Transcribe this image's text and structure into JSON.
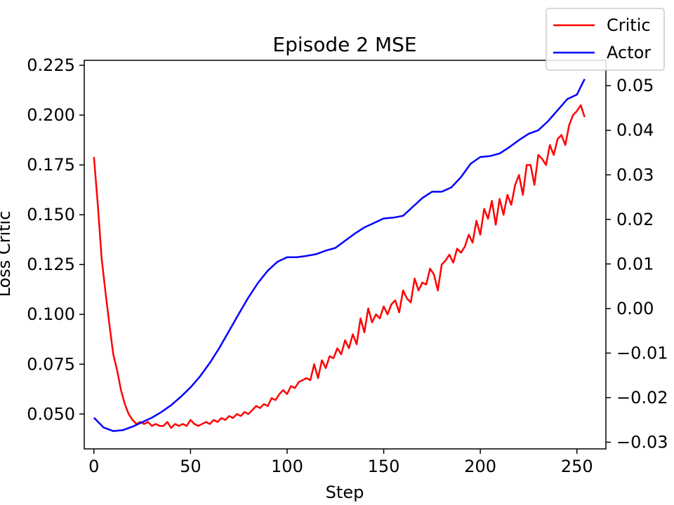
{
  "chart_data": {
    "type": "line",
    "title": "Episode 2 MSE",
    "xlabel": "Step",
    "ylabel_left": "Loss Critic",
    "ylabel_right": "",
    "xlim": [
      -5,
      265
    ],
    "ylim_left": [
      0.0325,
      0.2275
    ],
    "ylim_right": [
      -0.0315,
      0.0557
    ],
    "x_ticks": [
      0,
      50,
      100,
      150,
      200,
      250
    ],
    "y_left_ticks": [
      "0.050",
      "0.075",
      "0.100",
      "0.125",
      "0.150",
      "0.175",
      "0.200",
      "0.225"
    ],
    "y_right_ticks": [
      "0.05",
      "0.04",
      "0.03",
      "0.02",
      "0.01",
      "0.00",
      "−0.01",
      "−0.02",
      "−0.03"
    ],
    "legend": {
      "position": "top-right",
      "entries": [
        "Critic",
        "Actor"
      ]
    },
    "grid": false,
    "colors": {
      "critic": "#ff0000",
      "actor": "#0000ff"
    },
    "series": [
      {
        "name": "Critic",
        "axis": "left",
        "color": "#ff0000",
        "x": [
          0,
          2,
          4,
          6,
          8,
          10,
          12,
          14,
          16,
          18,
          20,
          22,
          24,
          26,
          28,
          30,
          32,
          34,
          36,
          38,
          40,
          42,
          44,
          46,
          48,
          50,
          52,
          54,
          56,
          58,
          60,
          62,
          64,
          66,
          68,
          70,
          72,
          74,
          76,
          78,
          80,
          82,
          84,
          86,
          88,
          90,
          92,
          94,
          96,
          98,
          100,
          102,
          104,
          106,
          108,
          110,
          112,
          114,
          116,
          118,
          120,
          122,
          124,
          126,
          128,
          130,
          132,
          134,
          136,
          138,
          140,
          142,
          144,
          146,
          148,
          150,
          152,
          154,
          156,
          158,
          160,
          162,
          164,
          166,
          168,
          170,
          172,
          174,
          176,
          178,
          180,
          182,
          184,
          186,
          188,
          190,
          192,
          194,
          196,
          198,
          200,
          202,
          204,
          206,
          208,
          210,
          212,
          214,
          216,
          218,
          220,
          222,
          224,
          226,
          228,
          230,
          232,
          234,
          236,
          238,
          240,
          242,
          244,
          246,
          248,
          250,
          252,
          254
        ],
        "values": [
          0.179,
          0.155,
          0.128,
          0.111,
          0.095,
          0.08,
          0.072,
          0.062,
          0.055,
          0.05,
          0.047,
          0.045,
          0.046,
          0.045,
          0.046,
          0.044,
          0.045,
          0.044,
          0.044,
          0.046,
          0.043,
          0.045,
          0.044,
          0.045,
          0.044,
          0.047,
          0.045,
          0.044,
          0.045,
          0.046,
          0.045,
          0.047,
          0.046,
          0.048,
          0.047,
          0.049,
          0.048,
          0.05,
          0.049,
          0.051,
          0.05,
          0.052,
          0.054,
          0.053,
          0.055,
          0.054,
          0.058,
          0.057,
          0.06,
          0.062,
          0.06,
          0.064,
          0.063,
          0.066,
          0.067,
          0.068,
          0.067,
          0.075,
          0.068,
          0.077,
          0.073,
          0.079,
          0.078,
          0.083,
          0.08,
          0.087,
          0.083,
          0.09,
          0.085,
          0.098,
          0.091,
          0.103,
          0.096,
          0.1,
          0.098,
          0.104,
          0.1,
          0.105,
          0.107,
          0.101,
          0.112,
          0.108,
          0.106,
          0.118,
          0.112,
          0.116,
          0.115,
          0.123,
          0.12,
          0.112,
          0.125,
          0.127,
          0.13,
          0.126,
          0.133,
          0.131,
          0.134,
          0.14,
          0.136,
          0.147,
          0.14,
          0.153,
          0.148,
          0.157,
          0.145,
          0.158,
          0.15,
          0.16,
          0.155,
          0.165,
          0.17,
          0.16,
          0.175,
          0.175,
          0.165,
          0.18,
          0.178,
          0.175,
          0.185,
          0.18,
          0.188,
          0.19,
          0.185,
          0.195,
          0.2,
          0.202,
          0.205,
          0.199
        ]
      },
      {
        "name": "Actor",
        "axis": "right",
        "color": "#0000ff",
        "x": [
          0,
          5,
          10,
          15,
          20,
          25,
          30,
          35,
          40,
          45,
          50,
          55,
          60,
          65,
          70,
          75,
          80,
          85,
          90,
          95,
          100,
          105,
          110,
          115,
          120,
          125,
          130,
          135,
          140,
          145,
          150,
          155,
          160,
          165,
          170,
          175,
          180,
          185,
          190,
          195,
          200,
          205,
          210,
          215,
          220,
          225,
          230,
          235,
          240,
          245,
          250,
          254
        ],
        "values": [
          -0.0245,
          -0.0267,
          -0.0275,
          -0.0273,
          -0.0265,
          -0.0255,
          -0.0245,
          -0.0232,
          -0.0217,
          -0.0198,
          -0.0177,
          -0.0152,
          -0.0122,
          -0.0088,
          -0.005,
          -0.0012,
          0.0025,
          0.0058,
          0.0085,
          0.0105,
          0.0115,
          0.0115,
          0.0118,
          0.0122,
          0.013,
          0.0136,
          0.0152,
          0.0168,
          0.0182,
          0.0192,
          0.0202,
          0.0204,
          0.0208,
          0.0228,
          0.0248,
          0.0262,
          0.0262,
          0.0272,
          0.0295,
          0.0325,
          0.034,
          0.0342,
          0.0348,
          0.0362,
          0.0378,
          0.0392,
          0.04,
          0.042,
          0.0445,
          0.047,
          0.048,
          0.0515
        ]
      }
    ]
  }
}
